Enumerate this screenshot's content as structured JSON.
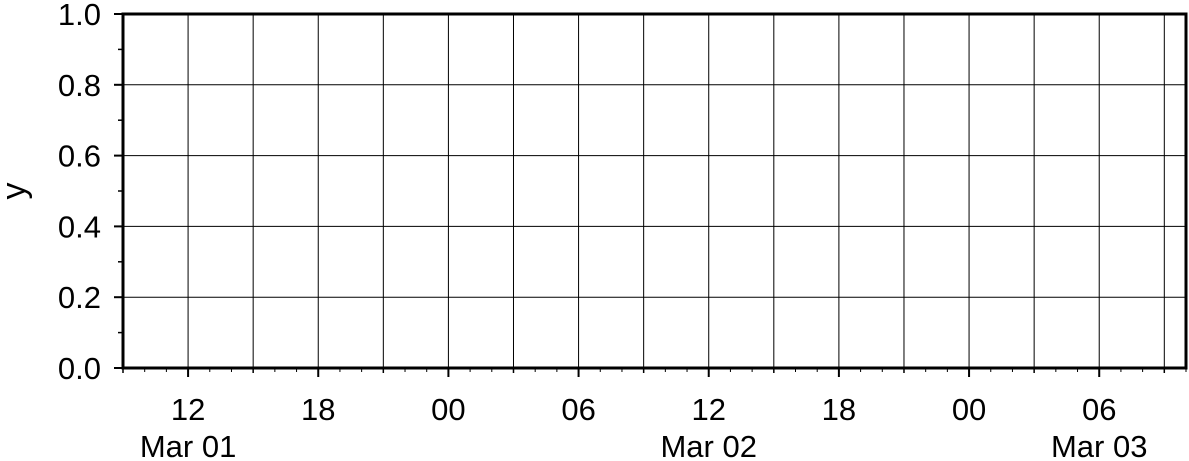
{
  "chart_data": {
    "type": "line",
    "title": "",
    "xlabel": "",
    "ylabel": "y",
    "xlim": [
      "2021-03-01T09:00",
      "2021-03-03T10:00"
    ],
    "ylim": [
      0.0,
      1.0
    ],
    "grid": true,
    "series": [],
    "y_ticks": [
      {
        "value": 0.0,
        "label": "0.0"
      },
      {
        "value": 0.2,
        "label": "0.2"
      },
      {
        "value": 0.4,
        "label": "0.4"
      },
      {
        "value": 0.6,
        "label": "0.6"
      },
      {
        "value": 0.8,
        "label": "0.8"
      },
      {
        "value": 1.0,
        "label": "1.0"
      }
    ],
    "x_ticks": [
      {
        "time": "2021-03-01T12:00",
        "label": "12"
      },
      {
        "time": "2021-03-01T18:00",
        "label": "18"
      },
      {
        "time": "2021-03-02T00:00",
        "label": "00"
      },
      {
        "time": "2021-03-02T06:00",
        "label": "06"
      },
      {
        "time": "2021-03-02T12:00",
        "label": "12"
      },
      {
        "time": "2021-03-02T18:00",
        "label": "18"
      },
      {
        "time": "2021-03-03T00:00",
        "label": "00"
      },
      {
        "time": "2021-03-03T06:00",
        "label": "06"
      }
    ],
    "x_day_labels": [
      {
        "time": "2021-03-01T12:00",
        "label": "Mar 01"
      },
      {
        "time": "2021-03-02T12:00",
        "label": "Mar 02"
      },
      {
        "time": "2021-03-03T06:00",
        "label": "Mar 03"
      }
    ]
  }
}
